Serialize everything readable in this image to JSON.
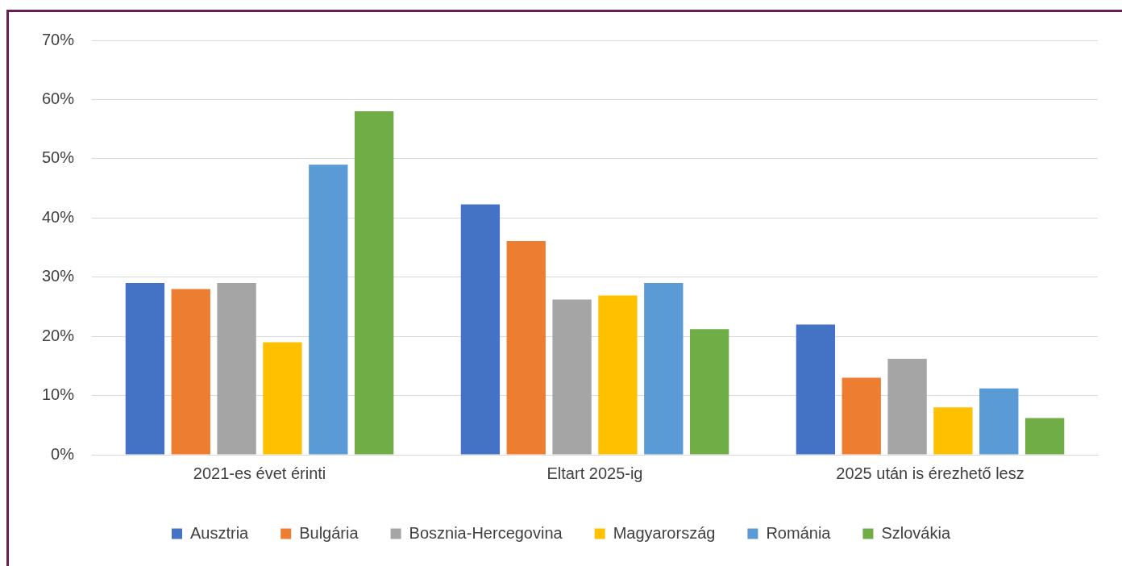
{
  "chart_data": {
    "type": "bar",
    "categories": [
      "2021-es évet érinti",
      "Eltart 2025-ig",
      "2025 után is érezhető lesz"
    ],
    "series": [
      {
        "name": "Ausztria",
        "color": "#4472c4",
        "values": [
          29,
          42.3,
          22
        ]
      },
      {
        "name": "Bulgária",
        "color": "#ed7d31",
        "values": [
          28,
          36.1,
          13
        ]
      },
      {
        "name": "Bosznia-Hercegovina",
        "color": "#a5a5a5",
        "values": [
          29,
          26.2,
          16.2
        ]
      },
      {
        "name": "Magyarország",
        "color": "#ffc000",
        "values": [
          19,
          26.9,
          8
        ]
      },
      {
        "name": "Románia",
        "color": "#5b9bd5",
        "values": [
          49,
          29,
          11.2
        ]
      },
      {
        "name": "Szlovákia",
        "color": "#70ad47",
        "values": [
          58,
          21.2,
          6.2
        ]
      }
    ],
    "ylim": [
      0,
      70
    ],
    "yticks": [
      {
        "value": 0,
        "label": "0%"
      },
      {
        "value": 10,
        "label": "10%"
      },
      {
        "value": 20,
        "label": "20%"
      },
      {
        "value": 30,
        "label": "30%"
      },
      {
        "value": 40,
        "label": "40%"
      },
      {
        "value": 50,
        "label": "50%"
      },
      {
        "value": 60,
        "label": "60%"
      },
      {
        "value": 70,
        "label": "70%"
      }
    ],
    "grid": "y",
    "legend": "bottom"
  }
}
